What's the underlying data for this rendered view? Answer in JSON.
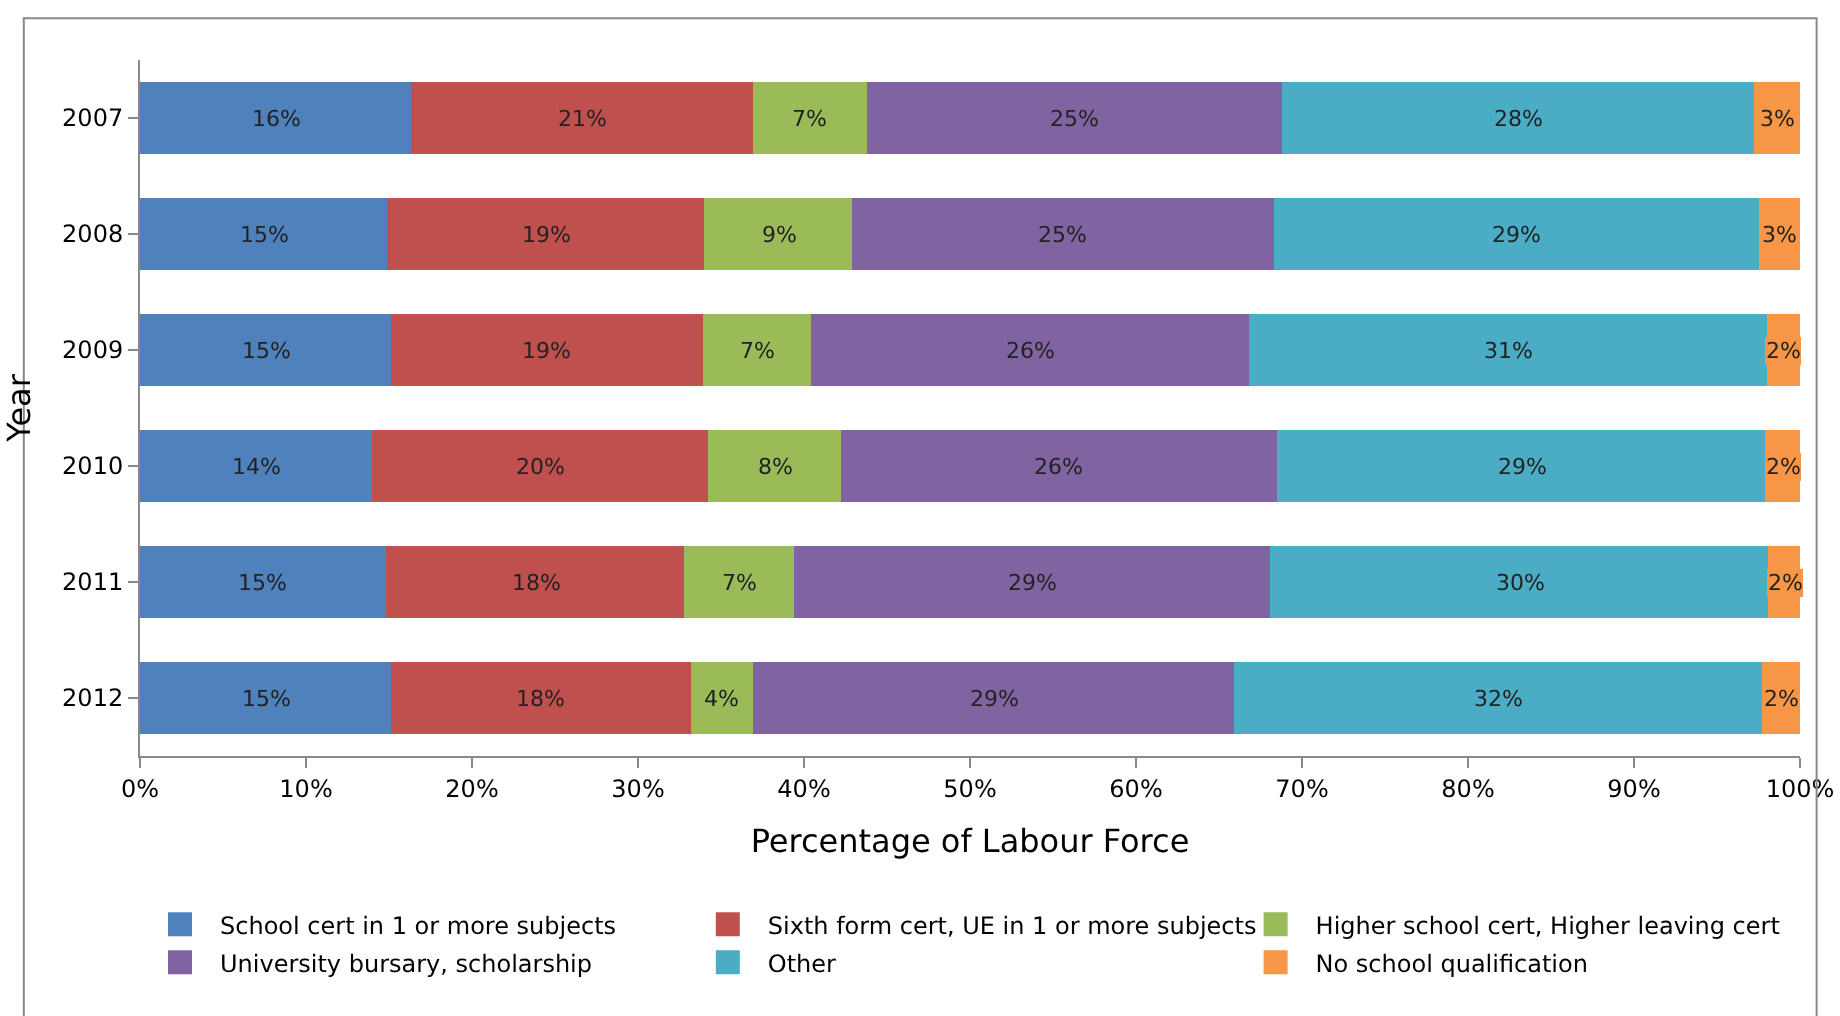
{
  "chart_data": {
    "type": "bar",
    "orientation": "horizontal",
    "stacked": true,
    "xlabel": "Percentage of Labour Force",
    "ylabel": "Year",
    "categories": [
      "2007",
      "2008",
      "2009",
      "2010",
      "2011",
      "2012"
    ],
    "series": [
      {
        "name": "School cert in 1 or more subjects",
        "color": "#4f81bd",
        "values": [
          16.3,
          14.9,
          15.1,
          14.0,
          14.8,
          15.1
        ],
        "value_labels": [
          "16%",
          "15%",
          "15%",
          "14%",
          "15%",
          "15%"
        ]
      },
      {
        "name": "Sixth form cert, UE in 1 or more subjects",
        "color": "#c0504d",
        "values": [
          20.6,
          19.1,
          18.8,
          20.2,
          18.0,
          18.1
        ],
        "value_labels": [
          "21%",
          "19%",
          "19%",
          "20%",
          "18%",
          "18%"
        ]
      },
      {
        "name": "Higher school cert, Higher leaving cert",
        "color": "#9bbb59",
        "values": [
          6.9,
          8.9,
          6.5,
          8.0,
          6.6,
          3.7
        ],
        "value_labels": [
          "7%",
          "9%",
          "7%",
          "8%",
          "7%",
          "4%"
        ]
      },
      {
        "name": "University bursary, scholarship",
        "color": "#8064a2",
        "values": [
          25.0,
          25.4,
          26.4,
          26.3,
          28.7,
          29.0
        ],
        "value_labels": [
          "25%",
          "25%",
          "26%",
          "26%",
          "29%",
          "29%"
        ]
      },
      {
        "name": "Other",
        "color": "#4bacc6",
        "values": [
          28.4,
          29.2,
          31.2,
          29.4,
          30.0,
          31.8
        ],
        "value_labels": [
          "28%",
          "29%",
          "31%",
          "29%",
          "30%",
          "32%"
        ]
      },
      {
        "name": "No school qualification",
        "color": "#f79646",
        "values": [
          2.8,
          2.5,
          2.0,
          2.1,
          1.9,
          2.3
        ],
        "value_labels": [
          "3%",
          "3%",
          "2%",
          "2%",
          "2%",
          "2%"
        ]
      }
    ],
    "xlim": [
      0,
      100
    ],
    "xticks": [
      {
        "value": 0,
        "label": "0%"
      },
      {
        "value": 10,
        "label": "10%"
      },
      {
        "value": 20,
        "label": "20%"
      },
      {
        "value": 30,
        "label": "30%"
      },
      {
        "value": 40,
        "label": "40%"
      },
      {
        "value": 50,
        "label": "50%"
      },
      {
        "value": 60,
        "label": "60%"
      },
      {
        "value": 70,
        "label": "70%"
      },
      {
        "value": 80,
        "label": "80%"
      },
      {
        "value": 90,
        "label": "90%"
      },
      {
        "value": 100,
        "label": "100%"
      }
    ],
    "legend": "bottom"
  }
}
